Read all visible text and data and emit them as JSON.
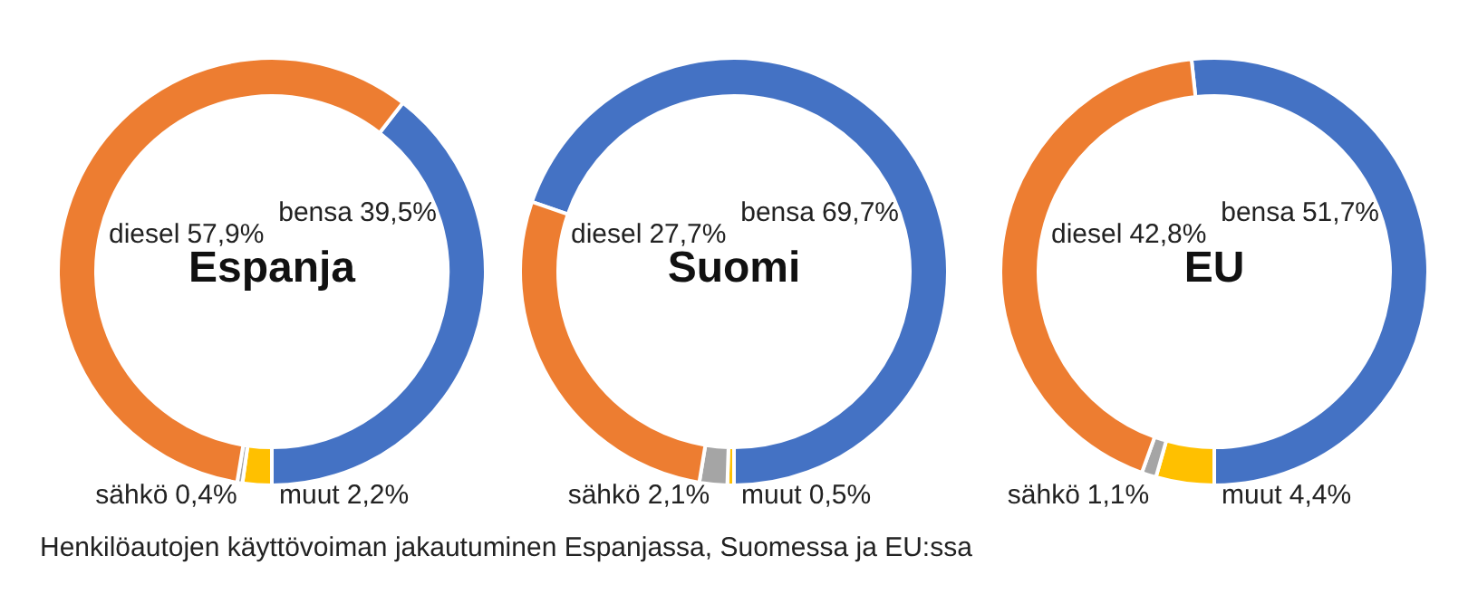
{
  "chart_data": [
    {
      "type": "donut",
      "title": "Espanja",
      "categories": [
        "bensa",
        "muut",
        "sähkö",
        "diesel"
      ],
      "values": [
        39.5,
        2.2,
        0.4,
        57.9
      ],
      "colors": [
        "#4472c4",
        "#ffc000",
        "#a5a5a5",
        "#ed7d31"
      ],
      "value_labels": [
        "39,5%",
        "2,2%",
        "0,4%",
        "57,9%"
      ],
      "legend": false,
      "annotations": [
        "Henkilöautojen käyttövoiman jakautuminen Espanjassa, Suomessa ja EU:ssa"
      ]
    },
    {
      "type": "donut",
      "title": "Suomi",
      "categories": [
        "bensa",
        "muut",
        "sähkö",
        "diesel"
      ],
      "values": [
        69.7,
        0.5,
        2.1,
        27.7
      ],
      "colors": [
        "#4472c4",
        "#ffc000",
        "#a5a5a5",
        "#ed7d31"
      ],
      "value_labels": [
        "69,7%",
        "0,5%",
        "2,1%",
        "27,7%"
      ],
      "legend": false
    },
    {
      "type": "donut",
      "title": "EU",
      "categories": [
        "bensa",
        "muut",
        "sähkö",
        "diesel"
      ],
      "values": [
        51.7,
        4.4,
        1.1,
        42.8
      ],
      "colors": [
        "#4472c4",
        "#ffc000",
        "#a5a5a5",
        "#ed7d31"
      ],
      "value_labels": [
        "51,7%",
        "4,4%",
        "1,1%",
        "42,8%"
      ],
      "legend": false
    }
  ]
}
